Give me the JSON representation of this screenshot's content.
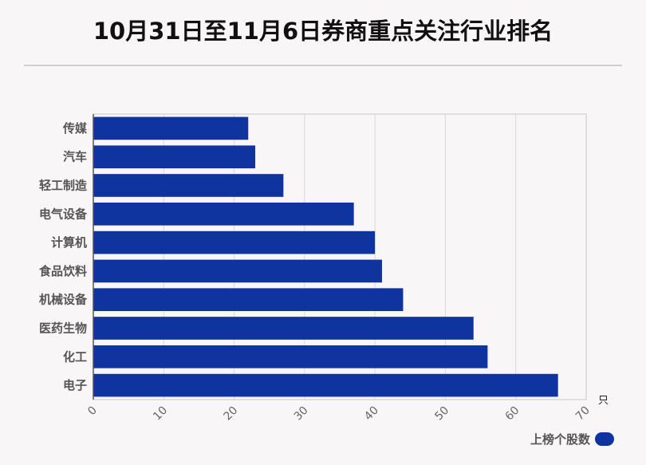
{
  "title": "10月31日至11月6日券商重点关注行业排名",
  "chart_data": {
    "type": "bar",
    "orientation": "horizontal",
    "categories": [
      "传媒",
      "汽车",
      "轻工制造",
      "电气设备",
      "计算机",
      "食品饮料",
      "机械设备",
      "医药生物",
      "化工",
      "电子"
    ],
    "values": [
      22,
      23,
      27,
      37,
      40,
      41,
      44,
      54,
      56,
      66
    ],
    "series": [
      {
        "name": "上榜个股数",
        "values": [
          22,
          23,
          27,
          37,
          40,
          41,
          44,
          54,
          56,
          66
        ]
      }
    ],
    "xlim": [
      0,
      70
    ],
    "ticks": [
      0,
      10,
      20,
      30,
      40,
      50,
      60,
      70
    ],
    "unit": "只",
    "grid": true,
    "legend": "bottom-right",
    "bar_color": "#0f34a0"
  }
}
